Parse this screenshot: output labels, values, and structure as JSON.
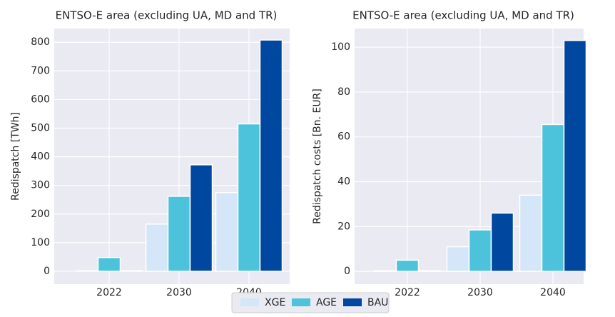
{
  "chart_data": [
    {
      "type": "bar",
      "title": "ENTSO-E area (excluding UA, MD and TR)",
      "ylabel": "Redispatch [TWh]",
      "categories": [
        "2022",
        "2030",
        "2040"
      ],
      "series": [
        {
          "name": "XGE",
          "color": "#d4e6f7",
          "values": [
            2,
            165,
            275
          ]
        },
        {
          "name": "AGE",
          "color": "#4cc3db",
          "values": [
            48,
            262,
            515
          ]
        },
        {
          "name": "BAU",
          "color": "#0047a0",
          "values": [
            2,
            372,
            808
          ]
        }
      ],
      "ylim": [
        -45,
        848
      ],
      "yticks": [
        0,
        100,
        200,
        300,
        400,
        500,
        600,
        700,
        800
      ],
      "grid": true
    },
    {
      "type": "bar",
      "title": "ENTSO-E area (excluding UA, MD and TR)",
      "ylabel": "Redispatch costs [Bn. EUR]",
      "categories": [
        "2022",
        "2030",
        "2040"
      ],
      "series": [
        {
          "name": "XGE",
          "color": "#d4e6f7",
          "values": [
            0.3,
            11,
            34
          ]
        },
        {
          "name": "AGE",
          "color": "#4cc3db",
          "values": [
            5,
            18.5,
            65.5
          ]
        },
        {
          "name": "BAU",
          "color": "#0047a0",
          "values": [
            0.3,
            26,
            103
          ]
        }
      ],
      "ylim": [
        -5.7,
        108.3
      ],
      "yticks": [
        0,
        20,
        40,
        60,
        80,
        100
      ],
      "grid": true
    }
  ]
}
